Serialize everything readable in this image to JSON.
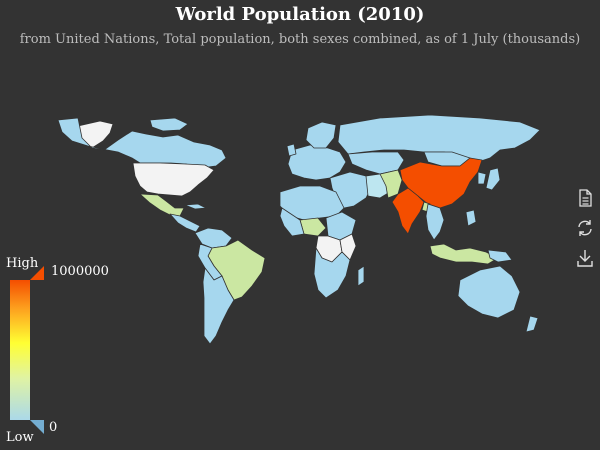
{
  "title": "World Population (2010)",
  "subtitle": "from United Nations, Total population, both sexes combined, as of 1 July (thousands)",
  "visual_map": {
    "high_label": "High",
    "low_label": "Low",
    "max_value": "1000000",
    "min_value": "0",
    "colors": [
      "#f44e00",
      "#fd9f1e",
      "#ffff33",
      "#e0f3a3",
      "#abd9e9",
      "#74add1"
    ]
  },
  "toolbox": {
    "items": [
      {
        "name": "data-view",
        "icon": "document-icon"
      },
      {
        "name": "restore",
        "icon": "refresh-icon"
      },
      {
        "name": "save-as-image",
        "icon": "download-icon"
      }
    ]
  },
  "colors": {
    "background": "#333333",
    "no_data": "#f3f3f3",
    "low": "#a6d7ee",
    "mid_low": "#bde6f0",
    "mid": "#cbe7a2",
    "high": "#f44e00",
    "border": "#333333"
  },
  "regions": [
    {
      "name": "China",
      "tone": "high"
    },
    {
      "name": "India",
      "tone": "high"
    },
    {
      "name": "United States",
      "tone": "no_data"
    },
    {
      "name": "Greenland",
      "tone": "no_data"
    },
    {
      "name": "Brazil",
      "tone": "mid"
    },
    {
      "name": "Indonesia",
      "tone": "mid"
    },
    {
      "name": "Pakistan",
      "tone": "mid"
    },
    {
      "name": "Nigeria",
      "tone": "mid"
    },
    {
      "name": "Bangladesh",
      "tone": "mid"
    },
    {
      "name": "Russia",
      "tone": "low"
    },
    {
      "name": "Canada",
      "tone": "low"
    },
    {
      "name": "Australia",
      "tone": "low"
    },
    {
      "name": "Mexico",
      "tone": "mid"
    },
    {
      "name": "DR Congo",
      "tone": "no_data"
    },
    {
      "name": "Tanzania",
      "tone": "no_data"
    }
  ]
}
